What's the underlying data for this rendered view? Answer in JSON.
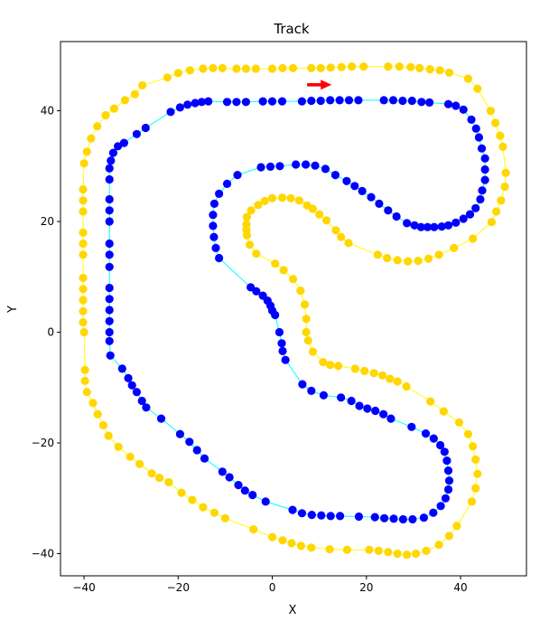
{
  "chart_data": {
    "type": "scatter",
    "title": "Track",
    "xlabel": "X",
    "ylabel": "Y",
    "xlim": [
      -45,
      54
    ],
    "ylim": [
      -44,
      52.5
    ],
    "x_ticks": [
      -40,
      -20,
      0,
      20,
      40
    ],
    "y_ticks": [
      -40,
      -20,
      0,
      20,
      40
    ],
    "grid": false,
    "series": [
      {
        "role": "outer-boundary",
        "color": "#ffd700",
        "line_color": "#ffff00",
        "closed": true,
        "points": [
          [
            -40,
            0
          ],
          [
            -40.2,
            1.8
          ],
          [
            -40.2,
            3.8
          ],
          [
            -40.2,
            5.8
          ],
          [
            -40.2,
            7.8
          ],
          [
            -40.2,
            9.8
          ],
          [
            -40.2,
            14
          ],
          [
            -40.2,
            16
          ],
          [
            -40.2,
            18
          ],
          [
            -40.2,
            21.8
          ],
          [
            -40.2,
            23.8
          ],
          [
            -40.2,
            25.8
          ],
          [
            -40,
            30.5
          ],
          [
            -39.4,
            32.6
          ],
          [
            -38.5,
            35
          ],
          [
            -37.2,
            37.2
          ],
          [
            -35.4,
            39.2
          ],
          [
            -33.6,
            40.4
          ],
          [
            -31.3,
            41.9
          ],
          [
            -29.2,
            43
          ],
          [
            -27.6,
            44.6
          ],
          [
            -22.3,
            46
          ],
          [
            -20,
            46.8
          ],
          [
            -17.5,
            47.3
          ],
          [
            -14.7,
            47.6
          ],
          [
            -12.6,
            47.7
          ],
          [
            -10.6,
            47.7
          ],
          [
            -7.6,
            47.6
          ],
          [
            -5.6,
            47.6
          ],
          [
            -3.5,
            47.6
          ],
          [
            0,
            47.6
          ],
          [
            2.2,
            47.7
          ],
          [
            4.4,
            47.7
          ],
          [
            8.3,
            47.7
          ],
          [
            10.3,
            47.7
          ],
          [
            12.4,
            47.8
          ],
          [
            14.7,
            47.9
          ],
          [
            16.9,
            48
          ],
          [
            19.4,
            48
          ],
          [
            24.6,
            48
          ],
          [
            27,
            48
          ],
          [
            29.4,
            47.9
          ],
          [
            31.3,
            47.7
          ],
          [
            33.5,
            47.5
          ],
          [
            35.6,
            47.3
          ],
          [
            37.6,
            46.9
          ],
          [
            41.6,
            45.8
          ],
          [
            43.6,
            44
          ],
          [
            46.4,
            40
          ],
          [
            47.4,
            37.8
          ],
          [
            48.4,
            35.5
          ],
          [
            49,
            33.5
          ],
          [
            49.6,
            28.8
          ],
          [
            49.4,
            26.3
          ],
          [
            48.6,
            23.8
          ],
          [
            47.6,
            21.8
          ],
          [
            46.6,
            19.9
          ],
          [
            42.6,
            16.9
          ],
          [
            38.6,
            15.2
          ],
          [
            35.4,
            14
          ],
          [
            33.2,
            13.3
          ],
          [
            31,
            12.9
          ],
          [
            28.8,
            12.8
          ],
          [
            26.6,
            13
          ],
          [
            24.4,
            13.4
          ],
          [
            22.4,
            14
          ],
          [
            16.2,
            16.1
          ],
          [
            14.6,
            17.2
          ],
          [
            13.5,
            18.4
          ],
          [
            11.5,
            20.2
          ],
          [
            10,
            21.3
          ],
          [
            8.6,
            22.3
          ],
          [
            7.4,
            22.9
          ],
          [
            5.7,
            23.8
          ],
          [
            3.9,
            24.2
          ],
          [
            2.1,
            24.3
          ],
          [
            0,
            24.2
          ],
          [
            -1.6,
            23.7
          ],
          [
            -3,
            23
          ],
          [
            -4.5,
            22
          ],
          [
            -5.4,
            20.8
          ],
          [
            -5.5,
            19.5
          ],
          [
            -5.5,
            18.5
          ],
          [
            -5.4,
            17.5
          ],
          [
            -4.8,
            15.8
          ],
          [
            -3.4,
            14.2
          ],
          [
            0.6,
            12.4
          ],
          [
            2.4,
            11.2
          ],
          [
            4.4,
            9.6
          ],
          [
            6,
            7.5
          ],
          [
            6.9,
            5
          ],
          [
            7.2,
            2.4
          ],
          [
            7.2,
            0
          ],
          [
            7.6,
            -1.5
          ],
          [
            8.6,
            -3.5
          ],
          [
            10.8,
            -5.4
          ],
          [
            12.3,
            -5.9
          ],
          [
            14,
            -6.1
          ],
          [
            17.6,
            -6.6
          ],
          [
            19.6,
            -7
          ],
          [
            21.6,
            -7.4
          ],
          [
            23.4,
            -7.8
          ],
          [
            25,
            -8.4
          ],
          [
            26.6,
            -8.9
          ],
          [
            28.5,
            -9.8
          ],
          [
            33.6,
            -12.5
          ],
          [
            36.4,
            -14.3
          ],
          [
            39.7,
            -16.3
          ],
          [
            41.6,
            -18.4
          ],
          [
            42.6,
            -20.6
          ],
          [
            43.2,
            -23
          ],
          [
            43.6,
            -25.6
          ],
          [
            43.2,
            -28.2
          ],
          [
            42.4,
            -30.6
          ],
          [
            39.2,
            -35
          ],
          [
            37.6,
            -36.8
          ],
          [
            35.4,
            -38.4
          ],
          [
            32.7,
            -39.5
          ],
          [
            30.5,
            -40
          ],
          [
            28.6,
            -40.2
          ],
          [
            26.6,
            -40
          ],
          [
            24.6,
            -39.7
          ],
          [
            22.6,
            -39.5
          ],
          [
            20.6,
            -39.3
          ],
          [
            15.9,
            -39.3
          ],
          [
            12.2,
            -39.2
          ],
          [
            8.3,
            -38.9
          ],
          [
            6.1,
            -38.6
          ],
          [
            4.1,
            -38.1
          ],
          [
            2.2,
            -37.6
          ],
          [
            0,
            -37
          ],
          [
            -4,
            -35.6
          ],
          [
            -10,
            -33.6
          ],
          [
            -12.3,
            -32.6
          ],
          [
            -14.7,
            -31.6
          ],
          [
            -17,
            -30.3
          ],
          [
            -19.3,
            -29
          ],
          [
            -22,
            -27.1
          ],
          [
            -24,
            -26.3
          ],
          [
            -25.6,
            -25.5
          ],
          [
            -28.2,
            -23.8
          ],
          [
            -30.2,
            -22.5
          ],
          [
            -32.7,
            -20.7
          ],
          [
            -34.8,
            -18.7
          ],
          [
            -35.9,
            -16.8
          ],
          [
            -37.1,
            -14.8
          ],
          [
            -38.1,
            -12.8
          ],
          [
            -39.4,
            -10.8
          ],
          [
            -39.8,
            -8.8
          ],
          [
            -39.8,
            -6.8
          ]
        ]
      },
      {
        "role": "inner-boundary",
        "color": "#0000ff",
        "line_color": "#00ffff",
        "closed": true,
        "points": [
          [
            -34.6,
            -1.6
          ],
          [
            -34.6,
            0
          ],
          [
            -34.6,
            2
          ],
          [
            -34.6,
            4
          ],
          [
            -34.6,
            6
          ],
          [
            -34.6,
            8
          ],
          [
            -34.6,
            11.8
          ],
          [
            -34.6,
            14
          ],
          [
            -34.6,
            16
          ],
          [
            -34.6,
            20
          ],
          [
            -34.6,
            22
          ],
          [
            -34.6,
            24
          ],
          [
            -34.6,
            27.6
          ],
          [
            -34.6,
            29.6
          ],
          [
            -34.3,
            31
          ],
          [
            -33.8,
            32.4
          ],
          [
            -32.8,
            33.6
          ],
          [
            -31.5,
            34.2
          ],
          [
            -28.8,
            35.8
          ],
          [
            -26.9,
            36.9
          ],
          [
            -21.6,
            39.8
          ],
          [
            -19.6,
            40.6
          ],
          [
            -18,
            41.1
          ],
          [
            -16.4,
            41.4
          ],
          [
            -15,
            41.6
          ],
          [
            -13.6,
            41.7
          ],
          [
            -9.6,
            41.6
          ],
          [
            -7.6,
            41.6
          ],
          [
            -5.6,
            41.6
          ],
          [
            -2,
            41.7
          ],
          [
            0,
            41.7
          ],
          [
            2.1,
            41.7
          ],
          [
            6.3,
            41.7
          ],
          [
            8.3,
            41.8
          ],
          [
            10.3,
            41.8
          ],
          [
            12.3,
            41.9
          ],
          [
            14.3,
            41.9
          ],
          [
            16.3,
            41.9
          ],
          [
            18.3,
            41.9
          ],
          [
            23.7,
            41.9
          ],
          [
            25.7,
            41.9
          ],
          [
            27.7,
            41.8
          ],
          [
            29.7,
            41.8
          ],
          [
            31.7,
            41.6
          ],
          [
            33.4,
            41.5
          ],
          [
            37.4,
            41.2
          ],
          [
            39,
            40.9
          ],
          [
            40.6,
            40.2
          ],
          [
            42.3,
            38.4
          ],
          [
            43.3,
            36.8
          ],
          [
            43.9,
            35.2
          ],
          [
            44.5,
            33.2
          ],
          [
            45.2,
            31.4
          ],
          [
            45.2,
            29.4
          ],
          [
            45.2,
            27.5
          ],
          [
            44.6,
            25.6
          ],
          [
            44.2,
            24
          ],
          [
            43.2,
            22.4
          ],
          [
            42,
            21.3
          ],
          [
            40.6,
            20.5
          ],
          [
            39,
            19.8
          ],
          [
            37.4,
            19.3
          ],
          [
            36,
            19.1
          ],
          [
            34.4,
            19
          ],
          [
            33,
            19
          ],
          [
            31.6,
            19
          ],
          [
            30.2,
            19.3
          ],
          [
            28.6,
            19.7
          ],
          [
            26.4,
            20.9
          ],
          [
            24.6,
            22
          ],
          [
            22.7,
            23.2
          ],
          [
            21,
            24.4
          ],
          [
            19.1,
            25.5
          ],
          [
            17.5,
            26.4
          ],
          [
            15.8,
            27.3
          ],
          [
            13.4,
            28.4
          ],
          [
            11.3,
            29.5
          ],
          [
            9.1,
            30.1
          ],
          [
            7.1,
            30.3
          ],
          [
            5,
            30.3
          ],
          [
            1.6,
            30
          ],
          [
            -0.4,
            29.9
          ],
          [
            -2.4,
            29.8
          ],
          [
            -7.4,
            28.4
          ],
          [
            -9.6,
            26.8
          ],
          [
            -11.3,
            25
          ],
          [
            -12.3,
            23.2
          ],
          [
            -12.6,
            21.2
          ],
          [
            -12.6,
            19.2
          ],
          [
            -12.4,
            17.2
          ],
          [
            -12,
            15.2
          ],
          [
            -11.3,
            13.4
          ],
          [
            -4.6,
            8.1
          ],
          [
            -3.4,
            7.4
          ],
          [
            -2,
            6.6
          ],
          [
            -1,
            5.7
          ],
          [
            -0.4,
            4.8
          ],
          [
            0,
            3.9
          ],
          [
            0.6,
            3.1
          ],
          [
            1.5,
            0
          ],
          [
            2,
            -2
          ],
          [
            2.2,
            -3.4
          ],
          [
            2.8,
            -5
          ],
          [
            6.4,
            -9.4
          ],
          [
            8.3,
            -10.6
          ],
          [
            10.9,
            -11.4
          ],
          [
            14.6,
            -11.8
          ],
          [
            16.8,
            -12.4
          ],
          [
            18.5,
            -13.3
          ],
          [
            20.2,
            -13.8
          ],
          [
            21.9,
            -14.2
          ],
          [
            23.6,
            -14.8
          ],
          [
            25.2,
            -15.6
          ],
          [
            29.6,
            -17.1
          ],
          [
            32.6,
            -18.3
          ],
          [
            34.3,
            -19.2
          ],
          [
            35.7,
            -20.4
          ],
          [
            36.6,
            -21.6
          ],
          [
            37.1,
            -23.2
          ],
          [
            37.4,
            -25
          ],
          [
            37.6,
            -26.8
          ],
          [
            37.4,
            -28.4
          ],
          [
            36.8,
            -30
          ],
          [
            35.8,
            -31.4
          ],
          [
            34.2,
            -32.6
          ],
          [
            32.2,
            -33.5
          ],
          [
            29.8,
            -33.8
          ],
          [
            27.8,
            -33.8
          ],
          [
            25.8,
            -33.7
          ],
          [
            23.8,
            -33.6
          ],
          [
            21.8,
            -33.4
          ],
          [
            18.4,
            -33.3
          ],
          [
            14.4,
            -33.2
          ],
          [
            12.4,
            -33.2
          ],
          [
            10.4,
            -33.1
          ],
          [
            8.4,
            -33
          ],
          [
            6.3,
            -32.7
          ],
          [
            4.3,
            -32.1
          ],
          [
            -1.4,
            -30.6
          ],
          [
            -4.2,
            -29.4
          ],
          [
            -5.8,
            -28.6
          ],
          [
            -7.2,
            -27.6
          ],
          [
            -9.1,
            -26.2
          ],
          [
            -10.6,
            -25.2
          ],
          [
            -14.4,
            -22.8
          ],
          [
            -16,
            -21.3
          ],
          [
            -17.6,
            -19.8
          ],
          [
            -19.6,
            -18.4
          ],
          [
            -23.6,
            -15.6
          ],
          [
            -26.8,
            -13.6
          ],
          [
            -27.7,
            -12.4
          ],
          [
            -28.8,
            -10.8
          ],
          [
            -29.8,
            -9.6
          ],
          [
            -30.6,
            -8.3
          ],
          [
            -31.9,
            -6.6
          ],
          [
            -34.4,
            -4.2
          ]
        ]
      }
    ],
    "annotations": [
      {
        "type": "arrow",
        "color": "#ff0000",
        "from": [
          7.4,
          44.7
        ],
        "to": [
          12.6,
          44.7
        ]
      }
    ]
  }
}
